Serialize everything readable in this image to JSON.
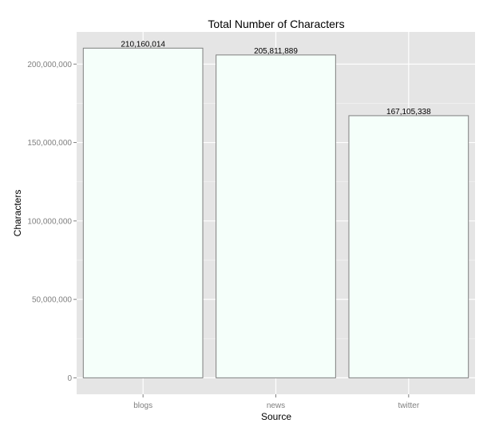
{
  "chart_data": {
    "type": "bar",
    "title": "Total Number of Characters",
    "xlabel": "Source",
    "ylabel": "Characters",
    "categories": [
      "blogs",
      "news",
      "twitter"
    ],
    "values": [
      210160014,
      205811889,
      167105338
    ],
    "value_labels": [
      "210,160,014",
      "205,811,889",
      "167,105,338"
    ],
    "ylim": [
      -10500000,
      220500000
    ],
    "yticks": [
      0,
      50000000,
      100000000,
      150000000,
      200000000
    ],
    "ytick_labels": [
      "0",
      "50,000,000",
      "100,000,000",
      "150,000,000",
      "200,000,000"
    ],
    "grid": true,
    "colors": {
      "panel_background": "#e5e5e5",
      "grid_major": "#ffffff",
      "grid_minor": "#f2f2f2",
      "bar_fill": "#f5fffa",
      "bar_outline": "#7f7f7f"
    }
  }
}
